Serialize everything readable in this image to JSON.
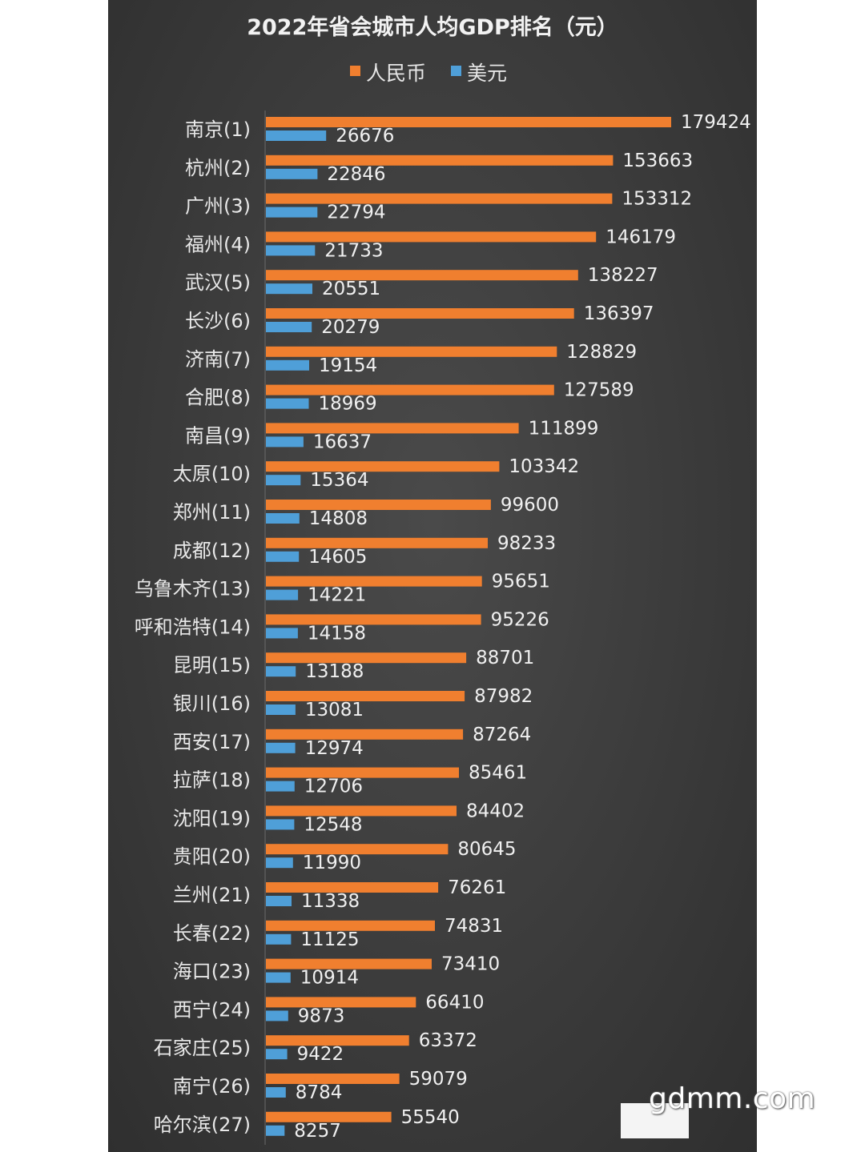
{
  "watermark": "gdmm.com",
  "colors": {
    "rmb": "#f07f2f",
    "usd": "#4f9fd8"
  },
  "chart_data": {
    "type": "bar",
    "orientation": "horizontal",
    "title": "2022年省会城市人均GDP排名（元）",
    "legend": [
      "人民币",
      "美元"
    ],
    "legend_position": "top",
    "categories": [
      "南京(1)",
      "杭州(2)",
      "广州(3)",
      "福州(4)",
      "武汉(5)",
      "长沙(6)",
      "济南(7)",
      "合肥(8)",
      "南昌(9)",
      "太原(10)",
      "郑州(11)",
      "成都(12)",
      "乌鲁木齐(13)",
      "呼和浩特(14)",
      "昆明(15)",
      "银川(16)",
      "西安(17)",
      "拉萨(18)",
      "沈阳(19)",
      "贵阳(20)",
      "兰州(21)",
      "长春(22)",
      "海口(23)",
      "西宁(24)",
      "石家庄(25)",
      "南宁(26)",
      "哈尔滨(27)"
    ],
    "series": [
      {
        "name": "人民币",
        "values": [
          179424,
          153663,
          153312,
          146179,
          138227,
          136397,
          128829,
          127589,
          111899,
          103342,
          99600,
          98233,
          95651,
          95226,
          88701,
          87982,
          87264,
          85461,
          84402,
          80645,
          76261,
          74831,
          73410,
          66410,
          63372,
          59079,
          55540
        ]
      },
      {
        "name": "美元",
        "values": [
          26676,
          22846,
          22794,
          21733,
          20551,
          20279,
          19154,
          18969,
          16637,
          15364,
          14808,
          14605,
          14221,
          14158,
          13188,
          13081,
          12974,
          12706,
          12548,
          11990,
          11338,
          11125,
          10914,
          9873,
          9422,
          8784,
          8257
        ]
      }
    ],
    "xlim": [
      0,
      179424
    ]
  }
}
